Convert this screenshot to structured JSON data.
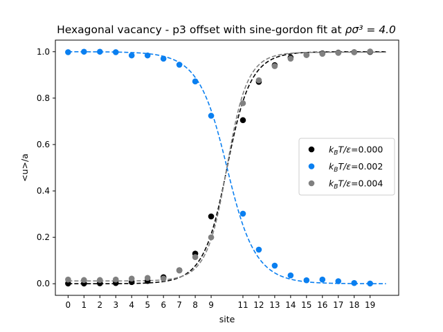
{
  "chart_data": {
    "type": "scatter",
    "title_prefix": "Hexagonal vacancy - p3 offset with sine-gordon fit at ",
    "title_math": "ρσ³ = 4.0",
    "xlabel": "site",
    "ylabel": "<u>/a",
    "xlim": [
      -0.8,
      20.8
    ],
    "ylim": [
      -0.05,
      1.05
    ],
    "xticks": [
      0,
      1,
      2,
      3,
      4,
      5,
      6,
      7,
      8,
      9,
      11,
      12,
      13,
      14,
      15,
      16,
      17,
      18,
      19
    ],
    "yticks": [
      0.0,
      0.2,
      0.4,
      0.6,
      0.8,
      1.0
    ],
    "ytick_labels": [
      "0.0",
      "0.2",
      "0.4",
      "0.6",
      "0.8",
      "1.0"
    ],
    "grid": false,
    "legend_position": "center-right",
    "series": [
      {
        "name": "k_BT/ε=0.000",
        "legend_label": "kBT/ε=0.000",
        "color": "#000000",
        "x": [
          0,
          1,
          2,
          3,
          4,
          5,
          6,
          7,
          8,
          9,
          11,
          12,
          13,
          14,
          15,
          16,
          17,
          18,
          19
        ],
        "y": [
          0.001,
          0.001,
          0.002,
          0.003,
          0.007,
          0.012,
          0.028,
          0.058,
          0.13,
          0.29,
          0.705,
          0.87,
          0.942,
          0.975,
          0.986,
          0.993,
          0.996,
          0.998,
          0.999
        ],
        "fit": {
          "kind": "sine-gordon",
          "center": 10.0,
          "width": 0.95,
          "ascending": true
        }
      },
      {
        "name": "k_BT/ε=0.002",
        "legend_label": "kBT/ε=0.002",
        "color": "#0a7ff0",
        "x": [
          0,
          1,
          2,
          3,
          4,
          5,
          6,
          7,
          8,
          9,
          11,
          12,
          13,
          14,
          15,
          16,
          17,
          18,
          19
        ],
        "y": [
          0.998,
          1.0,
          1.0,
          0.998,
          0.984,
          0.984,
          0.97,
          0.944,
          0.872,
          0.724,
          0.302,
          0.147,
          0.078,
          0.036,
          0.015,
          0.018,
          0.011,
          0.003,
          0.001
        ],
        "fit": {
          "kind": "sine-gordon",
          "center": 10.0,
          "width": 1.15,
          "ascending": false
        }
      },
      {
        "name": "k_BT/ε=0.004",
        "legend_label": "kBT/ε=0.004",
        "color": "#808080",
        "x": [
          0,
          1,
          2,
          3,
          4,
          5,
          6,
          7,
          8,
          9,
          11,
          12,
          13,
          14,
          15,
          16,
          17,
          18,
          19
        ],
        "y": [
          0.018,
          0.016,
          0.016,
          0.018,
          0.022,
          0.025,
          0.022,
          0.057,
          0.115,
          0.2,
          0.778,
          0.877,
          0.938,
          0.97,
          0.986,
          0.991,
          0.995,
          0.998,
          1.001
        ],
        "fit": {
          "kind": "sine-gordon",
          "center": 10.0,
          "width": 0.82,
          "ascending": true,
          "lo": 0.012,
          "hi": 0.998
        }
      }
    ]
  }
}
